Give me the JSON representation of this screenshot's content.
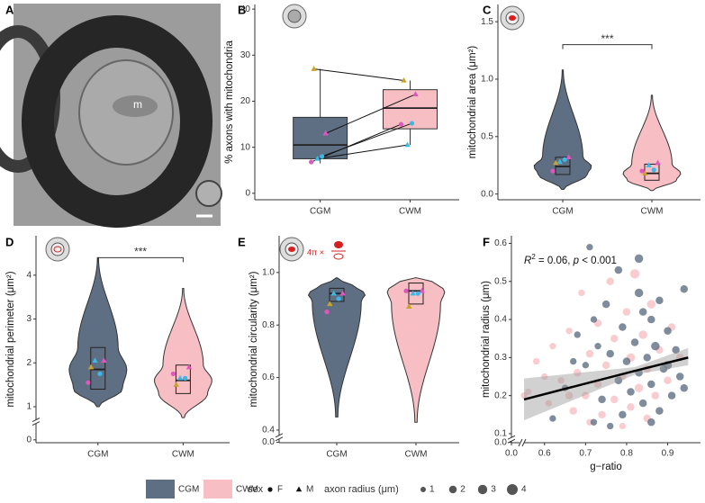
{
  "panel_labels": [
    "A",
    "B",
    "C",
    "D",
    "E",
    "F"
  ],
  "image": {
    "label": "m"
  },
  "chart_data": [
    {
      "type": "box",
      "y_label": "% axons with mitochondria",
      "categories": [
        "CGM",
        "CWM"
      ],
      "ylim": [
        -1.4,
        41
      ],
      "yticks": [
        0,
        10,
        20,
        30,
        40
      ],
      "boxes": [
        [
          6.5,
          7.5,
          10.5,
          16.5,
          27
        ],
        [
          10.5,
          14,
          18.5,
          22.5,
          24.5
        ]
      ],
      "paired": true,
      "animals": [
        {
          "color": "#c9a227",
          "shape": "triangle",
          "values": [
            27,
            24.5
          ]
        },
        {
          "color": "#e055c0",
          "shape": "triangle",
          "values": [
            13,
            21.5
          ]
        },
        {
          "color": "#3cb8e8",
          "shape": "circle",
          "values": [
            8,
            15.2
          ]
        },
        {
          "color": "#3cb8e8",
          "shape": "triangle",
          "values": [
            7.5,
            10.5
          ]
        },
        {
          "color": "#e055c0",
          "shape": "circle",
          "values": [
            6.8,
            15
          ]
        }
      ]
    },
    {
      "type": "violin",
      "y_label": "mitochondrial area (μm²)",
      "categories": [
        "CGM",
        "CWM"
      ],
      "ylim": [
        -0.05,
        1.65
      ],
      "yticks": [
        {
          "value": 0,
          "label": "0.0"
        },
        0.5,
        {
          "value": 1,
          "label": "1.0"
        },
        1.5
      ],
      "violins": [
        [
          0.04,
          1.08
        ],
        [
          0.03,
          0.86
        ]
      ],
      "boxes": [
        [
          0.17,
          0.24,
          0.32
        ],
        [
          0.12,
          0.18,
          0.26
        ]
      ],
      "significance": {
        "label": "***",
        "y": 1.3
      },
      "animals": [
        {
          "color": "#c9a227",
          "shape": "triangle",
          "values": [
            0.27,
            0.18
          ]
        },
        {
          "color": "#e055c0",
          "shape": "triangle",
          "values": [
            0.32,
            0.27
          ]
        },
        {
          "color": "#3cb8e8",
          "shape": "circle",
          "values": [
            0.3,
            0.21
          ]
        },
        {
          "color": "#3cb8e8",
          "shape": "triangle",
          "values": [
            0.28,
            0.25
          ]
        },
        {
          "color": "#e055c0",
          "shape": "circle",
          "values": [
            0.2,
            0.2
          ]
        }
      ]
    },
    {
      "type": "violin",
      "y_label": "mitochondrial perimeter (μm²)",
      "categories": [
        "CGM",
        "CWM"
      ],
      "ylim": [
        -0.1,
        4.9
      ],
      "y_break": 0.7,
      "yticks": [
        0,
        1,
        2,
        3,
        4
      ],
      "violins": [
        [
          1.0,
          4.4
        ],
        [
          0.75,
          3.7
        ]
      ],
      "boxes": [
        [
          1.4,
          1.85,
          2.35
        ],
        [
          1.3,
          1.6,
          1.95
        ]
      ],
      "significance": {
        "label": "***",
        "y": 4.4
      },
      "animals": [
        {
          "color": "#c9a227",
          "shape": "triangle",
          "values": [
            1.9,
            1.5
          ]
        },
        {
          "color": "#e055c0",
          "shape": "triangle",
          "values": [
            2.05,
            1.9
          ]
        },
        {
          "color": "#3cb8e8",
          "shape": "circle",
          "values": [
            1.75,
            1.65
          ]
        },
        {
          "color": "#3cb8e8",
          "shape": "triangle",
          "values": [
            2.05,
            1.65
          ]
        },
        {
          "color": "#e055c0",
          "shape": "circle",
          "values": [
            1.55,
            1.75
          ]
        }
      ]
    },
    {
      "type": "violin",
      "y_label": "mitochondrial circularity (μm²)",
      "formula": "4π ×",
      "categories": [
        "CGM",
        "CWM"
      ],
      "ylim": [
        -0.02,
        1.14
      ],
      "y_break": 0.38,
      "yticks": [
        {
          "value": 0,
          "label": "0.0"
        },
        0.4,
        0.6,
        0.8,
        {
          "value": 1,
          "label": "1.0"
        }
      ],
      "violins": [
        [
          0.45,
          0.98
        ],
        [
          0.43,
          0.98
        ]
      ],
      "boxes": [
        [
          0.89,
          0.92,
          0.94
        ],
        [
          0.88,
          0.93,
          0.96
        ]
      ],
      "animals": [
        {
          "color": "#c9a227",
          "shape": "triangle",
          "values": [
            0.88,
            0.87
          ]
        },
        {
          "color": "#e055c0",
          "shape": "triangle",
          "values": [
            0.92,
            0.93
          ]
        },
        {
          "color": "#3cb8e8",
          "shape": "circle",
          "values": [
            0.9,
            0.92
          ]
        },
        {
          "color": "#3cb8e8",
          "shape": "triangle",
          "values": [
            0.92,
            0.92
          ]
        },
        {
          "color": "#e055c0",
          "shape": "circle",
          "values": [
            0.85,
            0.93
          ]
        }
      ]
    },
    {
      "type": "scatter",
      "x_label": "g−ratio",
      "y_label": "mitochondrial radius (μm)",
      "annotation": [
        "R",
        "2",
        " = 0.06, ",
        "p",
        " < 0.001"
      ],
      "xlim": [
        0,
        0.98
      ],
      "x_break": 0.55,
      "xticks": [
        {
          "value": 0,
          "label": "0.0"
        },
        0.6,
        0.7,
        0.8,
        0.9
      ],
      "ylim": [
        -0.005,
        0.62
      ],
      "y_break": 0.09,
      "yticks": [
        {
          "value": 0,
          "label": "0.0"
        },
        0.1,
        0.2,
        0.3,
        0.4,
        0.5,
        0.6
      ],
      "series": [
        {
          "group": 1,
          "points": [
            [
              0.82,
              0.52,
              3
            ],
            [
              0.76,
              0.5,
              2
            ],
            [
              0.69,
              0.47,
              1.5
            ],
            [
              0.86,
              0.44,
              2.5
            ],
            [
              0.8,
              0.42,
              2
            ],
            [
              0.73,
              0.39,
              2
            ],
            [
              0.91,
              0.38,
              2
            ],
            [
              0.66,
              0.37,
              1.5
            ],
            [
              0.84,
              0.36,
              2.5
            ],
            [
              0.77,
              0.35,
              2
            ],
            [
              0.62,
              0.33,
              1.5
            ],
            [
              0.88,
              0.32,
              2
            ],
            [
              0.71,
              0.31,
              2
            ],
            [
              0.81,
              0.3,
              2.5
            ],
            [
              0.58,
              0.29,
              1.5
            ],
            [
              0.75,
              0.28,
              2
            ],
            [
              0.85,
              0.27,
              2
            ],
            [
              0.68,
              0.26,
              2
            ],
            [
              0.79,
              0.25,
              2
            ],
            [
              0.9,
              0.24,
              2
            ],
            [
              0.64,
              0.24,
              1.5
            ],
            [
              0.73,
              0.23,
              2
            ],
            [
              0.83,
              0.22,
              2.5
            ],
            [
              0.56,
              0.21,
              1.5
            ],
            [
              0.7,
              0.2,
              2
            ],
            [
              0.87,
              0.2,
              2
            ],
            [
              0.77,
              0.19,
              2
            ],
            [
              0.61,
              0.18,
              1.5
            ],
            [
              0.81,
              0.17,
              2
            ],
            [
              0.67,
              0.16,
              2
            ],
            [
              0.74,
              0.15,
              2
            ],
            [
              0.85,
              0.14,
              2
            ],
            [
              0.71,
              0.13,
              1.5
            ],
            [
              0.79,
              0.12,
              1.5
            ],
            [
              0.6,
              0.25,
              1.5
            ],
            [
              0.93,
              0.3,
              2
            ],
            [
              0.66,
              0.2,
              2
            ],
            [
              0.55,
              0.2,
              1.5
            ]
          ]
        },
        {
          "group": 0,
          "points": [
            [
              0.71,
              0.59,
              1.5
            ],
            [
              0.83,
              0.56,
              2.5
            ],
            [
              0.78,
              0.53,
              2
            ],
            [
              0.94,
              0.48,
              2
            ],
            [
              0.83,
              0.47,
              2.5
            ],
            [
              0.88,
              0.45,
              2
            ],
            [
              0.75,
              0.44,
              2
            ],
            [
              0.84,
              0.42,
              2
            ],
            [
              0.72,
              0.4,
              1.5
            ],
            [
              0.86,
              0.4,
              2
            ],
            [
              0.79,
              0.38,
              2
            ],
            [
              0.9,
              0.37,
              2
            ],
            [
              0.68,
              0.36,
              1.5
            ],
            [
              0.82,
              0.34,
              2
            ],
            [
              0.87,
              0.33,
              2.5
            ],
            [
              0.92,
              0.32,
              2
            ],
            [
              0.76,
              0.31,
              2
            ],
            [
              0.85,
              0.3,
              2
            ],
            [
              0.8,
              0.29,
              2
            ],
            [
              0.7,
              0.28,
              1.5
            ],
            [
              0.89,
              0.27,
              2
            ],
            [
              0.83,
              0.26,
              2
            ],
            [
              0.93,
              0.25,
              2
            ],
            [
              0.78,
              0.24,
              2
            ],
            [
              0.86,
              0.23,
              2
            ],
            [
              0.65,
              0.22,
              1.5
            ],
            [
              0.81,
              0.21,
              2
            ],
            [
              0.91,
              0.2,
              2
            ],
            [
              0.74,
              0.19,
              2
            ],
            [
              0.84,
              0.18,
              2
            ],
            [
              0.88,
              0.16,
              2
            ],
            [
              0.79,
              0.15,
              2
            ],
            [
              0.62,
              0.14,
              1.5
            ],
            [
              0.72,
              0.13,
              1.5
            ],
            [
              0.86,
              0.13,
              2
            ],
            [
              0.76,
              0.12,
              1.5
            ],
            [
              0.94,
              0.22,
              2
            ],
            [
              0.67,
              0.29,
              1.5
            ],
            [
              0.73,
              0.33,
              1.5
            ],
            [
              0.9,
              0.28,
              2.5
            ]
          ]
        }
      ],
      "fit": {
        "x": [
          0.55,
          0.82,
          0.95
        ],
        "y": [
          0.19,
          0.265,
          0.3
        ],
        "lower": [
          0.135,
          0.255,
          0.28
        ],
        "upper": [
          0.245,
          0.275,
          0.325
        ]
      }
    }
  ],
  "legend": {
    "groups": [
      {
        "name": "CGM",
        "color": "#5f6f83"
      },
      {
        "name": "CWM",
        "color": "#f7bfc3"
      }
    ],
    "sex_title": "sex",
    "sex": [
      {
        "label": "F",
        "shape": "circle"
      },
      {
        "label": "M",
        "shape": "triangle"
      }
    ],
    "size_title": "axon radius (μm)",
    "sizes": [
      1,
      2,
      3,
      4
    ]
  }
}
